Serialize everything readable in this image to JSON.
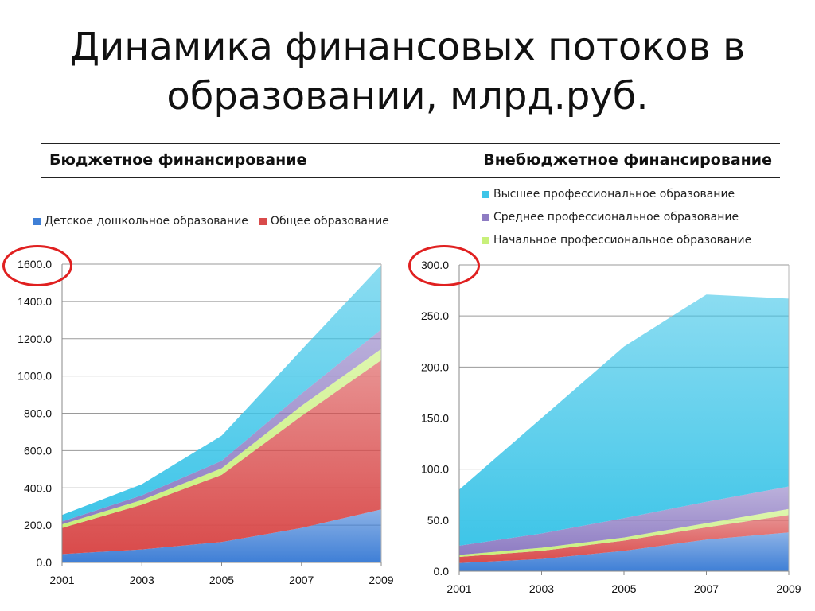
{
  "title": {
    "line1": "Динамика финансовых потоков в",
    "line2": "образовании, млрд.руб."
  },
  "header": {
    "left": "Бюджетное финансирование",
    "right": "Внебюджетное финансирование"
  },
  "colors": {
    "preschool": "#3f7fd6",
    "general": "#d94b4b",
    "primary_prof": "#c8f07a",
    "secondary_prof": "#8e7cc3",
    "higher_prof": "#3ec5e8",
    "highlight": "#e02020"
  },
  "chart_data": [
    {
      "type": "area",
      "stacked": true,
      "x": [
        "2001",
        "2003",
        "2005",
        "2007",
        "2009"
      ],
      "ylim": [
        0,
        1600
      ],
      "yticks": [
        "0.0",
        "200.0",
        "400.0",
        "600.0",
        "800.0",
        "1000.0",
        "1200.0",
        "1400.0",
        "1600.0"
      ],
      "grid": true,
      "legend_position": "top",
      "legend_series": [
        {
          "name": "Детское дошкольное образование",
          "color_key": "preschool"
        },
        {
          "name": "Общее образование",
          "color_key": "general"
        }
      ],
      "series": [
        {
          "name": "Детское дошкольное образование",
          "color_key": "preschool",
          "values": [
            45,
            70,
            110,
            185,
            285
          ]
        },
        {
          "name": "Общее образование",
          "color_key": "general",
          "values": [
            140,
            240,
            360,
            600,
            800
          ]
        },
        {
          "color_key": "primary_prof",
          "values": [
            20,
            25,
            35,
            55,
            60
          ]
        },
        {
          "color_key": "secondary_prof",
          "values": [
            15,
            25,
            40,
            65,
            105
          ]
        },
        {
          "color_key": "higher_prof",
          "values": [
            35,
            60,
            135,
            235,
            345
          ]
        }
      ],
      "highlight_label": "1600.0"
    },
    {
      "type": "area",
      "stacked": true,
      "x": [
        "2001",
        "2003",
        "2005",
        "2007",
        "2009"
      ],
      "ylim": [
        0,
        300
      ],
      "yticks": [
        "0.0",
        "50.0",
        "100.0",
        "150.0",
        "200.0",
        "250.0",
        "300.0"
      ],
      "grid": true,
      "legend_position": "top",
      "legend_series": [
        {
          "name": "Высшее профессиональное образование",
          "color_key": "higher_prof"
        },
        {
          "name": "Среднее профессиональное образование",
          "color_key": "secondary_prof"
        },
        {
          "name": "Начальное профессиональное образование",
          "color_key": "primary_prof"
        }
      ],
      "series": [
        {
          "color_key": "preschool",
          "values": [
            8,
            12,
            20,
            31,
            38
          ]
        },
        {
          "color_key": "general",
          "values": [
            6,
            8,
            10,
            12,
            17
          ]
        },
        {
          "name": "Начальное профессиональное образование",
          "color_key": "primary_prof",
          "values": [
            2,
            3,
            3,
            4,
            6
          ]
        },
        {
          "name": "Среднее профессиональное образование",
          "color_key": "secondary_prof",
          "values": [
            9,
            14,
            19,
            21,
            22
          ]
        },
        {
          "name": "Высшее профессиональное образование",
          "color_key": "higher_prof",
          "values": [
            55,
            113,
            168,
            203,
            184
          ]
        }
      ],
      "highlight_label": "300.0"
    }
  ]
}
